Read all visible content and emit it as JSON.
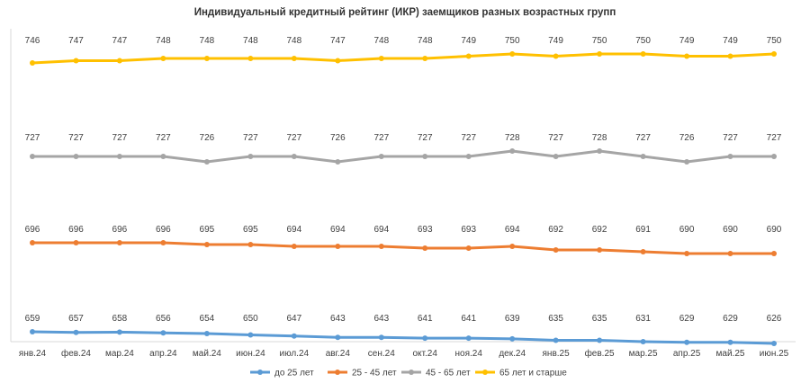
{
  "chart_data": {
    "type": "line",
    "title": "Индивидуальный кредитный рейтинг (ИКР) заемщиков разных возрастных групп",
    "categories": [
      "янв.24",
      "фев.24",
      "мар.24",
      "апр.24",
      "май.24",
      "июн.24",
      "июл.24",
      "авг.24",
      "сен.24",
      "окт.24",
      "ноя.24",
      "дек.24",
      "янв.25",
      "фев.25",
      "мар.25",
      "апр.25",
      "май.25",
      "июн.25"
    ],
    "series": [
      {
        "name": "до 25 лет",
        "color": "#5B9BD5",
        "values": [
          659,
          657,
          658,
          656,
          654,
          650,
          647,
          643,
          643,
          641,
          641,
          639,
          635,
          635,
          631,
          629,
          629,
          626
        ]
      },
      {
        "name": "25 - 45 лет",
        "color": "#ED7D31",
        "values": [
          696,
          696,
          696,
          696,
          695,
          695,
          694,
          694,
          694,
          693,
          693,
          694,
          692,
          692,
          691,
          690,
          690,
          690
        ]
      },
      {
        "name": "45 - 65 лет",
        "color": "#A5A5A5",
        "values": [
          727,
          727,
          727,
          727,
          726,
          727,
          727,
          726,
          727,
          727,
          727,
          728,
          727,
          728,
          727,
          726,
          727,
          727
        ]
      },
      {
        "name": "65 лет и старше",
        "color": "#FFC000",
        "values": [
          746,
          747,
          747,
          748,
          748,
          748,
          748,
          747,
          748,
          748,
          749,
          750,
          749,
          750,
          750,
          749,
          749,
          750
        ]
      }
    ],
    "legend_position": "bottom",
    "grid": false
  }
}
